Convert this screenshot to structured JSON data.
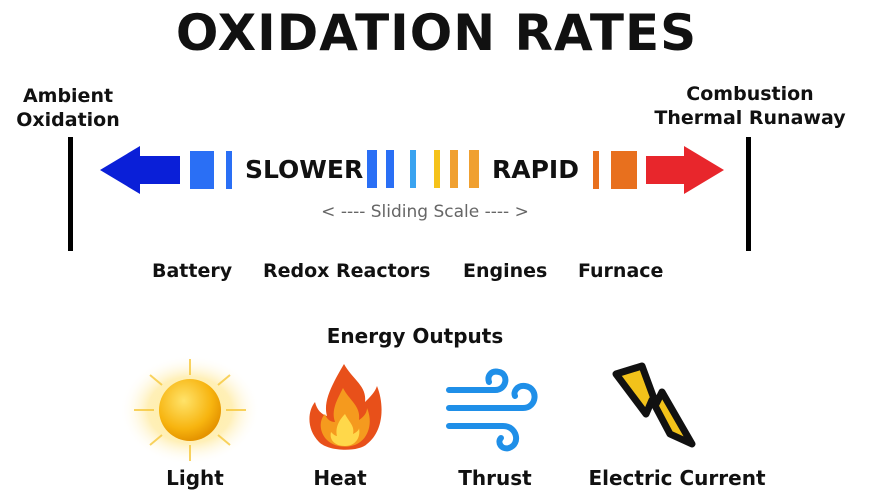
{
  "title": "OXIDATION RATES",
  "left_end": {
    "line1": "Ambient",
    "line2": "Oxidation"
  },
  "right_end": {
    "line1": "Combustion",
    "line2": "Thermal Runaway"
  },
  "scale": {
    "slow_label": "SLOWER",
    "fast_label": "RAPID",
    "note": "< ---- Sliding Scale ---- >",
    "colors": {
      "slow_arrow": "#0a1fd8",
      "blue": "#2a6ff5",
      "light_blue": "#3aa3f0",
      "yellow": "#f5c21a",
      "orange": "#f0a030",
      "dark_orange": "#e8701e",
      "fast_arrow": "#e8262c"
    }
  },
  "applications": [
    "Battery",
    "Redox Reactors",
    "Engines",
    "Furnace"
  ],
  "outputs": {
    "heading": "Energy Outputs",
    "items": [
      {
        "label": "Light",
        "icon": "sun-icon"
      },
      {
        "label": "Heat",
        "icon": "flame-icon"
      },
      {
        "label": "Thrust",
        "icon": "wind-icon"
      },
      {
        "label": "Electric Current",
        "icon": "lightning-icon"
      }
    ]
  }
}
